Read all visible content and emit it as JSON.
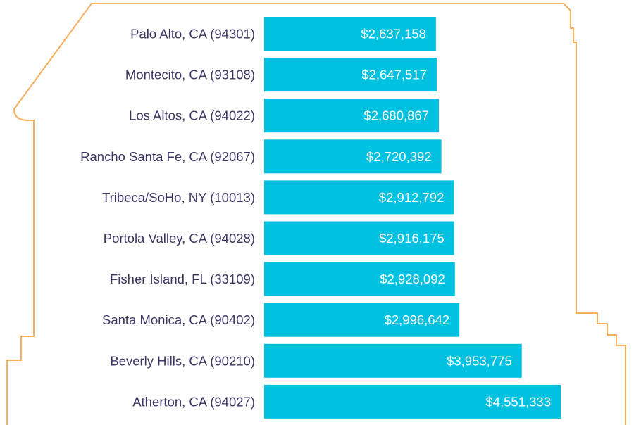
{
  "chart_data": {
    "type": "bar",
    "orientation": "horizontal",
    "categories": [
      "Palo Alto, CA (94301)",
      "Montecito, CA (93108)",
      "Los Altos, CA (94022)",
      "Rancho Santa Fe, CA (92067)",
      "Tribeca/SoHo, NY (10013)",
      "Portola Valley, CA (94028)",
      "Fisher Island, FL (33109)",
      "Santa Monica, CA (90402)",
      "Beverly Hills, CA (90210)",
      "Atherton, CA (94027)"
    ],
    "values": [
      2637158,
      2647517,
      2680867,
      2720392,
      2912792,
      2916175,
      2928092,
      2996642,
      3953775,
      4551333
    ],
    "value_labels": [
      "$2,637,158",
      "$2,647,517",
      "$2,680,867",
      "$2,720,392",
      "$2,912,792",
      "$2,916,175",
      "$2,928,092",
      "$2,996,642",
      "$3,953,775",
      "$4,551,333"
    ],
    "title": "",
    "xlabel": "",
    "ylabel": "",
    "grid": false,
    "legend": "none"
  },
  "colors": {
    "bar": "#00c2e0",
    "value_text": "#ffffff",
    "category_text": "#3e3564",
    "outline": "#f5ae5a",
    "background": "#ffffff"
  }
}
